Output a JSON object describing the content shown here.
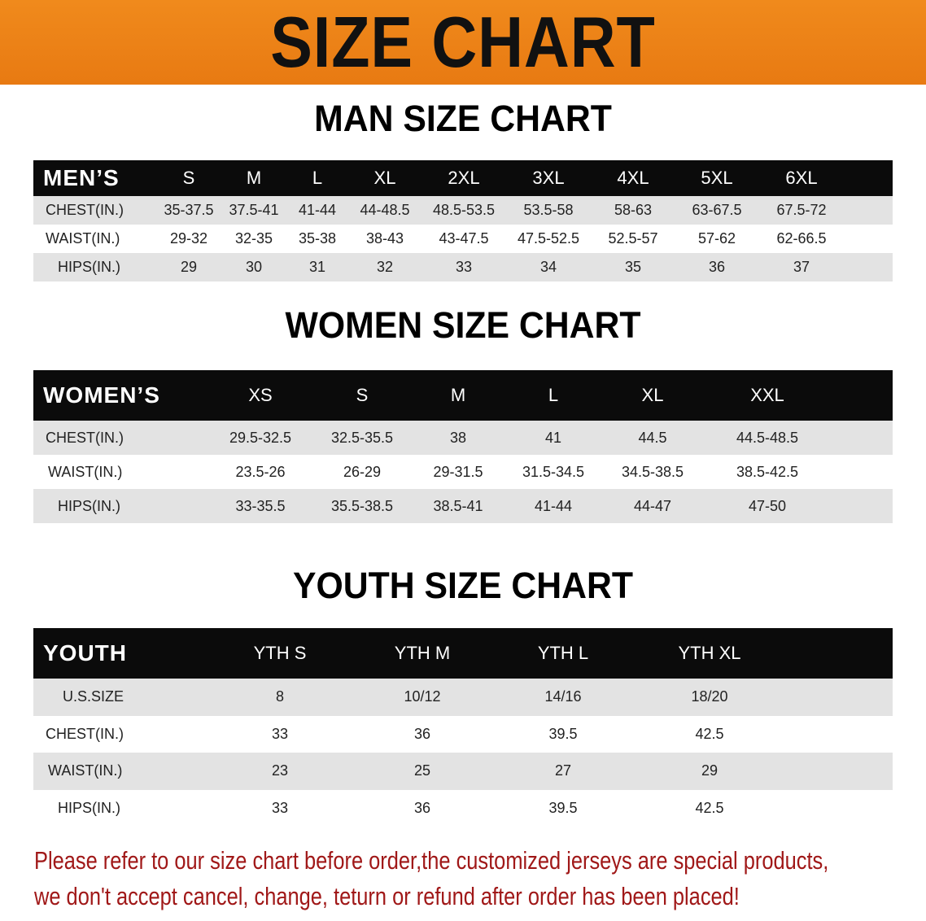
{
  "banner": {
    "title": "SIZE CHART",
    "color": "#ec8318"
  },
  "men": {
    "title": "MAN SIZE CHART",
    "header": "MEN’S",
    "sizes": [
      "S",
      "M",
      "L",
      "XL",
      "2XL",
      "3XL",
      "4XL",
      "5XL",
      "6XL"
    ],
    "rows": [
      {
        "label": "CHEST(IN.)",
        "values": [
          "35-37.5",
          "37.5-41",
          "41-44",
          "44-48.5",
          "48.5-53.5",
          "53.5-58",
          "58-63",
          "63-67.5",
          "67.5-72"
        ]
      },
      {
        "label": "WAIST(IN.)",
        "values": [
          "29-32",
          "32-35",
          "35-38",
          "38-43",
          "43-47.5",
          "47.5-52.5",
          "52.5-57",
          "57-62",
          "62-66.5"
        ]
      },
      {
        "label": "HIPS(IN.)",
        "values": [
          "29",
          "30",
          "31",
          "32",
          "33",
          "34",
          "35",
          "36",
          "37"
        ]
      }
    ]
  },
  "women": {
    "title": "WOMEN SIZE CHART",
    "header": "WOMEN’S",
    "sizes": [
      "XS",
      "S",
      "M",
      "L",
      "XL",
      "XXL"
    ],
    "rows": [
      {
        "label": "CHEST(IN.)",
        "values": [
          "29.5-32.5",
          "32.5-35.5",
          "38",
          "41",
          "44.5",
          "44.5-48.5"
        ]
      },
      {
        "label": "WAIST(IN.)",
        "values": [
          "23.5-26",
          "26-29",
          "29-31.5",
          "31.5-34.5",
          "34.5-38.5",
          "38.5-42.5"
        ]
      },
      {
        "label": "HIPS(IN.)",
        "values": [
          "33-35.5",
          "35.5-38.5",
          "38.5-41",
          "41-44",
          "44-47",
          "47-50"
        ]
      }
    ]
  },
  "youth": {
    "title": "YOUTH SIZE CHART",
    "header": "YOUTH",
    "sizes": [
      "YTH S",
      "YTH M",
      "YTH L",
      "YTH XL"
    ],
    "rows": [
      {
        "label": "U.S.SIZE",
        "values": [
          "8",
          "10/12",
          "14/16",
          "18/20"
        ]
      },
      {
        "label": "CHEST(IN.)",
        "values": [
          "33",
          "36",
          "39.5",
          "42.5"
        ]
      },
      {
        "label": "WAIST(IN.)",
        "values": [
          "23",
          "25",
          "27",
          "29"
        ]
      },
      {
        "label": "HIPS(IN.)",
        "values": [
          "33",
          "36",
          "39.5",
          "42.5"
        ]
      }
    ]
  },
  "notice": {
    "line1": "Please refer to our size chart before order,the customized jerseys are special products,",
    "line2": "we don't accept cancel, change, teturn or refund after order has been placed!",
    "color": "#a01818"
  }
}
